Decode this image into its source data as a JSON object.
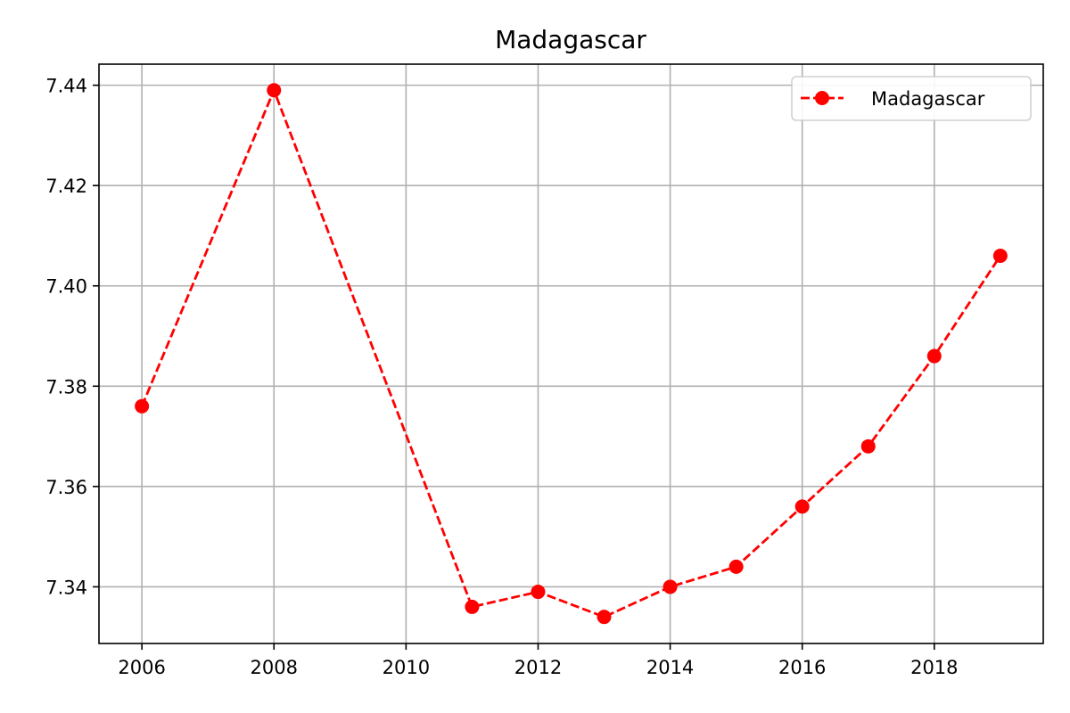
{
  "chart_data": {
    "type": "line",
    "title": "Madagascar",
    "xlabel": "",
    "ylabel": "",
    "xlim": [
      2005.35,
      2019.65
    ],
    "ylim": [
      7.3287,
      7.4442
    ],
    "x_ticks": [
      2006,
      2008,
      2010,
      2012,
      2014,
      2016,
      2018
    ],
    "y_ticks": [
      7.34,
      7.36,
      7.38,
      7.4,
      7.42,
      7.44
    ],
    "x_tick_labels": [
      "2006",
      "2008",
      "2010",
      "2012",
      "2014",
      "2016",
      "2018"
    ],
    "y_tick_labels": [
      "7.34",
      "7.36",
      "7.38",
      "7.40",
      "7.42",
      "7.44"
    ],
    "grid": true,
    "legend_position": "top-right",
    "series": [
      {
        "name": "Madagascar",
        "color": "#ff0000",
        "line_style": "dashed",
        "marker": "circle",
        "x": [
          2006,
          2008,
          2011,
          2012,
          2013,
          2014,
          2015,
          2016,
          2017,
          2018,
          2019
        ],
        "y": [
          7.376,
          7.439,
          7.336,
          7.339,
          7.334,
          7.34,
          7.344,
          7.356,
          7.368,
          7.386,
          7.406
        ]
      }
    ]
  }
}
